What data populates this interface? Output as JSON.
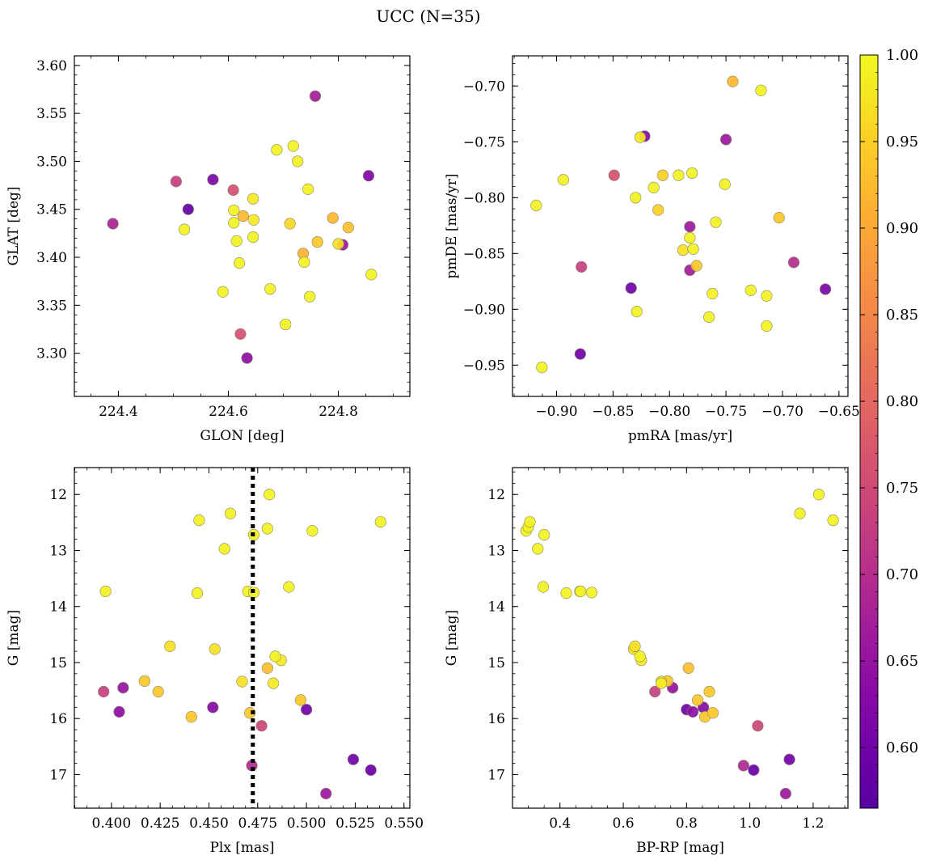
{
  "title": "UCC (N=35)",
  "colorbar": {
    "range": [
      0.565,
      1.0
    ],
    "ticks": [
      "0.60",
      "0.65",
      "0.70",
      "0.75",
      "0.80",
      "0.85",
      "0.90",
      "0.95",
      "1.00"
    ],
    "colormap": "plasma"
  },
  "chart_data": [
    {
      "type": "scatter",
      "title": "",
      "xlabel": "GLON [deg]",
      "ylabel": "GLAT [deg]",
      "xlim": [
        224.32,
        224.93
      ],
      "ylim": [
        3.255,
        3.61
      ],
      "xticks": [
        "224.4",
        "224.6",
        "224.8"
      ],
      "yticks": [
        "3.30",
        "3.35",
        "3.40",
        "3.45",
        "3.50",
        "3.55",
        "3.60"
      ],
      "grid": false,
      "points": [
        {
          "x": 224.39,
          "y": 3.435,
          "c": 0.68
        },
        {
          "x": 224.505,
          "y": 3.479,
          "c": 0.73
        },
        {
          "x": 224.52,
          "y": 3.429,
          "c": 0.99
        },
        {
          "x": 224.527,
          "y": 3.45,
          "c": 0.58
        },
        {
          "x": 224.572,
          "y": 3.481,
          "c": 0.61
        },
        {
          "x": 224.59,
          "y": 3.364,
          "c": 0.99
        },
        {
          "x": 224.609,
          "y": 3.47,
          "c": 0.76
        },
        {
          "x": 224.61,
          "y": 3.449,
          "c": 0.99
        },
        {
          "x": 224.61,
          "y": 3.436,
          "c": 0.99
        },
        {
          "x": 224.615,
          "y": 3.417,
          "c": 0.99
        },
        {
          "x": 224.62,
          "y": 3.394,
          "c": 0.99
        },
        {
          "x": 224.622,
          "y": 3.32,
          "c": 0.76
        },
        {
          "x": 224.627,
          "y": 3.443,
          "c": 0.92
        },
        {
          "x": 224.634,
          "y": 3.295,
          "c": 0.64
        },
        {
          "x": 224.645,
          "y": 3.461,
          "c": 0.98
        },
        {
          "x": 224.646,
          "y": 3.439,
          "c": 0.98
        },
        {
          "x": 224.645,
          "y": 3.421,
          "c": 0.99
        },
        {
          "x": 224.676,
          "y": 3.367,
          "c": 0.99
        },
        {
          "x": 224.688,
          "y": 3.512,
          "c": 0.99
        },
        {
          "x": 224.704,
          "y": 3.33,
          "c": 0.99
        },
        {
          "x": 224.712,
          "y": 3.435,
          "c": 0.96
        },
        {
          "x": 224.718,
          "y": 3.516,
          "c": 0.99
        },
        {
          "x": 224.726,
          "y": 3.5,
          "c": 0.99
        },
        {
          "x": 224.736,
          "y": 3.404,
          "c": 0.91
        },
        {
          "x": 224.738,
          "y": 3.395,
          "c": 0.99
        },
        {
          "x": 224.745,
          "y": 3.471,
          "c": 0.99
        },
        {
          "x": 224.748,
          "y": 3.359,
          "c": 0.99
        },
        {
          "x": 224.758,
          "y": 3.568,
          "c": 0.67
        },
        {
          "x": 224.762,
          "y": 3.416,
          "c": 0.94
        },
        {
          "x": 224.79,
          "y": 3.441,
          "c": 0.92
        },
        {
          "x": 224.8,
          "y": 3.414,
          "c": 0.97
        },
        {
          "x": 224.808,
          "y": 3.413,
          "c": 0.66
        },
        {
          "x": 224.818,
          "y": 3.431,
          "c": 0.93
        },
        {
          "x": 224.855,
          "y": 3.485,
          "c": 0.62
        },
        {
          "x": 224.86,
          "y": 3.382,
          "c": 0.99
        }
      ]
    },
    {
      "type": "scatter",
      "title": "",
      "xlabel": "pmRA [mas/yr]",
      "ylabel": "pmDE [mas/yr]",
      "xlim": [
        -0.939,
        -0.642
      ],
      "ylim": [
        -0.978,
        -0.673
      ],
      "xticks": [
        "−0.90",
        "−0.85",
        "−0.80",
        "−0.75",
        "−0.70",
        "−0.65"
      ],
      "yticks": [
        "−0.95",
        "−0.90",
        "−0.85",
        "−0.80",
        "−0.75",
        "−0.70"
      ],
      "grid": false,
      "points": [
        {
          "x": -0.918,
          "y": -0.807,
          "c": 0.99
        },
        {
          "x": -0.913,
          "y": -0.952,
          "c": 0.99
        },
        {
          "x": -0.894,
          "y": -0.784,
          "c": 0.99
        },
        {
          "x": -0.879,
          "y": -0.94,
          "c": 0.6
        },
        {
          "x": -0.878,
          "y": -0.862,
          "c": 0.73
        },
        {
          "x": -0.849,
          "y": -0.78,
          "c": 0.76
        },
        {
          "x": -0.834,
          "y": -0.881,
          "c": 0.6
        },
        {
          "x": -0.83,
          "y": -0.8,
          "c": 0.99
        },
        {
          "x": -0.829,
          "y": -0.902,
          "c": 0.99
        },
        {
          "x": -0.826,
          "y": -0.746,
          "c": 0.98
        },
        {
          "x": -0.822,
          "y": -0.745,
          "c": 0.63
        },
        {
          "x": -0.814,
          "y": -0.791,
          "c": 0.99
        },
        {
          "x": -0.81,
          "y": -0.811,
          "c": 0.95
        },
        {
          "x": -0.806,
          "y": -0.78,
          "c": 0.95
        },
        {
          "x": -0.792,
          "y": -0.78,
          "c": 0.99
        },
        {
          "x": -0.788,
          "y": -0.847,
          "c": 0.97
        },
        {
          "x": -0.782,
          "y": -0.826,
          "c": 0.66
        },
        {
          "x": -0.782,
          "y": -0.836,
          "c": 0.99
        },
        {
          "x": -0.782,
          "y": -0.865,
          "c": 0.67
        },
        {
          "x": -0.78,
          "y": -0.778,
          "c": 0.99
        },
        {
          "x": -0.779,
          "y": -0.846,
          "c": 0.99
        },
        {
          "x": -0.776,
          "y": -0.861,
          "c": 0.94
        },
        {
          "x": -0.765,
          "y": -0.907,
          "c": 0.99
        },
        {
          "x": -0.762,
          "y": -0.886,
          "c": 0.99
        },
        {
          "x": -0.759,
          "y": -0.822,
          "c": 0.99
        },
        {
          "x": -0.751,
          "y": -0.788,
          "c": 0.99
        },
        {
          "x": -0.75,
          "y": -0.748,
          "c": 0.66
        },
        {
          "x": -0.744,
          "y": -0.696,
          "c": 0.92
        },
        {
          "x": -0.728,
          "y": -0.883,
          "c": 0.99
        },
        {
          "x": -0.719,
          "y": -0.704,
          "c": 0.99
        },
        {
          "x": -0.714,
          "y": -0.888,
          "c": 0.99
        },
        {
          "x": -0.714,
          "y": -0.915,
          "c": 0.99
        },
        {
          "x": -0.703,
          "y": -0.818,
          "c": 0.94
        },
        {
          "x": -0.69,
          "y": -0.858,
          "c": 0.7
        },
        {
          "x": -0.662,
          "y": -0.882,
          "c": 0.61
        }
      ]
    },
    {
      "type": "scatter",
      "title": "",
      "xlabel": "Plx [mas]",
      "ylabel": "G [mag]",
      "xlim": [
        0.381,
        0.553
      ],
      "ylim": [
        17.6,
        11.52
      ],
      "y_inverted": true,
      "xticks": [
        "0.400",
        "0.425",
        "0.450",
        "0.475",
        "0.500",
        "0.525",
        "0.550"
      ],
      "yticks": [
        "12",
        "13",
        "14",
        "15",
        "16",
        "17"
      ],
      "grid": false,
      "vline": {
        "x": 0.4725,
        "style": "dotted",
        "color": "#000000"
      },
      "points": [
        {
          "x": 0.397,
          "y": 13.73,
          "c": 0.99
        },
        {
          "x": 0.396,
          "y": 15.52,
          "c": 0.73
        },
        {
          "x": 0.404,
          "y": 15.88,
          "c": 0.64
        },
        {
          "x": 0.406,
          "y": 15.45,
          "c": 0.65
        },
        {
          "x": 0.417,
          "y": 15.33,
          "c": 0.94
        },
        {
          "x": 0.424,
          "y": 15.52,
          "c": 0.94
        },
        {
          "x": 0.43,
          "y": 14.71,
          "c": 0.97
        },
        {
          "x": 0.441,
          "y": 15.97,
          "c": 0.94
        },
        {
          "x": 0.444,
          "y": 13.76,
          "c": 0.99
        },
        {
          "x": 0.445,
          "y": 12.46,
          "c": 0.99
        },
        {
          "x": 0.452,
          "y": 15.8,
          "c": 0.63
        },
        {
          "x": 0.453,
          "y": 14.76,
          "c": 0.97
        },
        {
          "x": 0.458,
          "y": 12.97,
          "c": 0.99
        },
        {
          "x": 0.461,
          "y": 12.34,
          "c": 0.99
        },
        {
          "x": 0.467,
          "y": 15.34,
          "c": 0.97
        },
        {
          "x": 0.47,
          "y": 13.73,
          "c": 0.99
        },
        {
          "x": 0.471,
          "y": 15.9,
          "c": 0.94
        },
        {
          "x": 0.472,
          "y": 16.84,
          "c": 0.69
        },
        {
          "x": 0.473,
          "y": 13.75,
          "c": 0.99
        },
        {
          "x": 0.473,
          "y": 12.72,
          "c": 0.99
        },
        {
          "x": 0.477,
          "y": 16.13,
          "c": 0.74
        },
        {
          "x": 0.48,
          "y": 12.61,
          "c": 0.99
        },
        {
          "x": 0.48,
          "y": 15.1,
          "c": 0.93
        },
        {
          "x": 0.481,
          "y": 12.0,
          "c": 0.99
        },
        {
          "x": 0.483,
          "y": 15.37,
          "c": 0.98
        },
        {
          "x": 0.484,
          "y": 14.89,
          "c": 0.99
        },
        {
          "x": 0.487,
          "y": 14.96,
          "c": 0.98
        },
        {
          "x": 0.491,
          "y": 13.65,
          "c": 0.99
        },
        {
          "x": 0.497,
          "y": 15.67,
          "c": 0.94
        },
        {
          "x": 0.5,
          "y": 15.84,
          "c": 0.6
        },
        {
          "x": 0.503,
          "y": 12.65,
          "c": 0.99
        },
        {
          "x": 0.51,
          "y": 17.34,
          "c": 0.66
        },
        {
          "x": 0.524,
          "y": 16.73,
          "c": 0.6
        },
        {
          "x": 0.533,
          "y": 16.92,
          "c": 0.59
        },
        {
          "x": 0.538,
          "y": 12.49,
          "c": 0.99
        }
      ]
    },
    {
      "type": "scatter",
      "title": "",
      "xlabel": "BP-RP [mag]",
      "ylabel": "G [mag]",
      "xlim": [
        0.25,
        1.31
      ],
      "ylim": [
        17.6,
        11.52
      ],
      "y_inverted": true,
      "xticks": [
        "0.4",
        "0.6",
        "0.8",
        "1.0",
        "1.2"
      ],
      "yticks": [
        "12",
        "13",
        "14",
        "15",
        "16",
        "17"
      ],
      "grid": false,
      "points": [
        {
          "x": 0.293,
          "y": 12.65,
          "c": 0.99
        },
        {
          "x": 0.3,
          "y": 12.58,
          "c": 0.99
        },
        {
          "x": 0.305,
          "y": 12.49,
          "c": 0.99
        },
        {
          "x": 0.33,
          "y": 12.97,
          "c": 0.99
        },
        {
          "x": 0.35,
          "y": 12.72,
          "c": 0.99
        },
        {
          "x": 0.347,
          "y": 13.65,
          "c": 0.99
        },
        {
          "x": 0.42,
          "y": 13.76,
          "c": 0.99
        },
        {
          "x": 0.463,
          "y": 13.73,
          "c": 0.99
        },
        {
          "x": 0.465,
          "y": 13.73,
          "c": 0.99
        },
        {
          "x": 0.5,
          "y": 13.75,
          "c": 0.99
        },
        {
          "x": 0.633,
          "y": 14.76,
          "c": 0.97
        },
        {
          "x": 0.637,
          "y": 14.71,
          "c": 0.97
        },
        {
          "x": 0.653,
          "y": 14.89,
          "c": 0.99
        },
        {
          "x": 0.657,
          "y": 14.96,
          "c": 0.98
        },
        {
          "x": 0.7,
          "y": 15.52,
          "c": 0.73
        },
        {
          "x": 0.72,
          "y": 15.34,
          "c": 0.97
        },
        {
          "x": 0.72,
          "y": 15.37,
          "c": 0.98
        },
        {
          "x": 0.74,
          "y": 15.33,
          "c": 0.94
        },
        {
          "x": 0.756,
          "y": 15.45,
          "c": 0.65
        },
        {
          "x": 0.8,
          "y": 15.84,
          "c": 0.6
        },
        {
          "x": 0.806,
          "y": 15.1,
          "c": 0.93
        },
        {
          "x": 0.82,
          "y": 15.88,
          "c": 0.64
        },
        {
          "x": 0.835,
          "y": 15.67,
          "c": 0.94
        },
        {
          "x": 0.853,
          "y": 15.8,
          "c": 0.63
        },
        {
          "x": 0.858,
          "y": 15.97,
          "c": 0.94
        },
        {
          "x": 0.872,
          "y": 15.52,
          "c": 0.94
        },
        {
          "x": 0.883,
          "y": 15.9,
          "c": 0.94
        },
        {
          "x": 0.98,
          "y": 16.84,
          "c": 0.69
        },
        {
          "x": 1.012,
          "y": 16.92,
          "c": 0.59
        },
        {
          "x": 1.025,
          "y": 16.13,
          "c": 0.74
        },
        {
          "x": 1.113,
          "y": 17.34,
          "c": 0.66
        },
        {
          "x": 1.125,
          "y": 16.73,
          "c": 0.6
        },
        {
          "x": 1.158,
          "y": 12.34,
          "c": 0.99
        },
        {
          "x": 1.218,
          "y": 12.0,
          "c": 0.99
        },
        {
          "x": 1.263,
          "y": 12.46,
          "c": 0.99
        }
      ]
    }
  ]
}
